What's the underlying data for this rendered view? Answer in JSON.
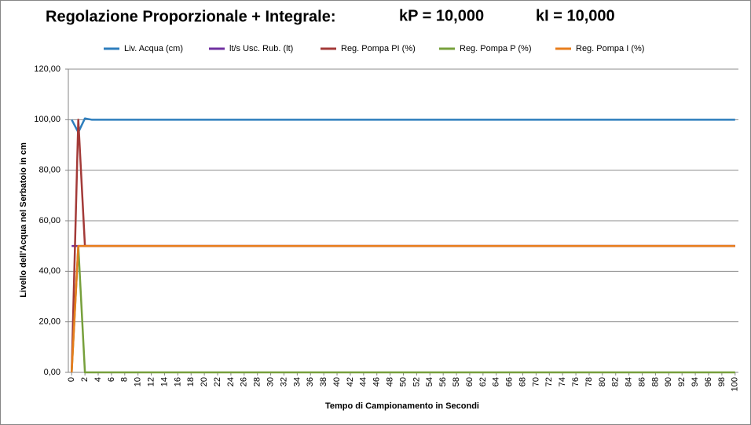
{
  "chart_data": {
    "type": "line",
    "title": "Regolazione Proporzionale + Integrale:",
    "annotations": [
      "kP =  10,000",
      "kI =  10,000"
    ],
    "x_label": "Tempo di Campionamento in Secondi",
    "y_label": "Livello dell'Acqua  nel Serbatoio  in cm",
    "x": [
      0,
      1,
      2,
      3,
      100
    ],
    "series": [
      {
        "name": "Liv. Acqua (cm)",
        "color": "#2e7ebd",
        "values": [
          100,
          95,
          100.5,
          100,
          100
        ]
      },
      {
        "name": "lt/s Usc. Rub. (lt)",
        "color": "#7030a0",
        "values": [
          50,
          50,
          50,
          50,
          50
        ]
      },
      {
        "name": "Reg. Pompa PI (%)",
        "color": "#a33a38",
        "values": [
          0,
          100,
          50,
          50,
          50
        ]
      },
      {
        "name": "Reg. Pompa P (%)",
        "color": "#77a03c",
        "values": [
          0,
          50,
          0,
          0,
          0
        ]
      },
      {
        "name": "Reg. Pompa I (%)",
        "color": "#e87e1c",
        "values": [
          0,
          50,
          50,
          50,
          50
        ]
      }
    ],
    "xlim": [
      -0.5,
      100.5
    ],
    "xticks": [
      0,
      2,
      4,
      6,
      8,
      10,
      12,
      14,
      16,
      18,
      20,
      22,
      24,
      26,
      28,
      30,
      32,
      34,
      36,
      38,
      40,
      42,
      44,
      46,
      48,
      50,
      52,
      54,
      56,
      58,
      60,
      62,
      64,
      66,
      68,
      70,
      72,
      74,
      76,
      78,
      80,
      82,
      84,
      86,
      88,
      90,
      92,
      94,
      96,
      98,
      100
    ],
    "ylim": [
      0,
      120
    ],
    "yticks": [
      {
        "value": 0,
        "label": "0,00"
      },
      {
        "value": 20,
        "label": "20,00"
      },
      {
        "value": 40,
        "label": "40,00"
      },
      {
        "value": 60,
        "label": "60,00"
      },
      {
        "value": 80,
        "label": "80,00"
      },
      {
        "value": 100,
        "label": "100,00"
      },
      {
        "value": 120,
        "label": "120,00"
      }
    ],
    "grid": true,
    "legend": "top"
  }
}
